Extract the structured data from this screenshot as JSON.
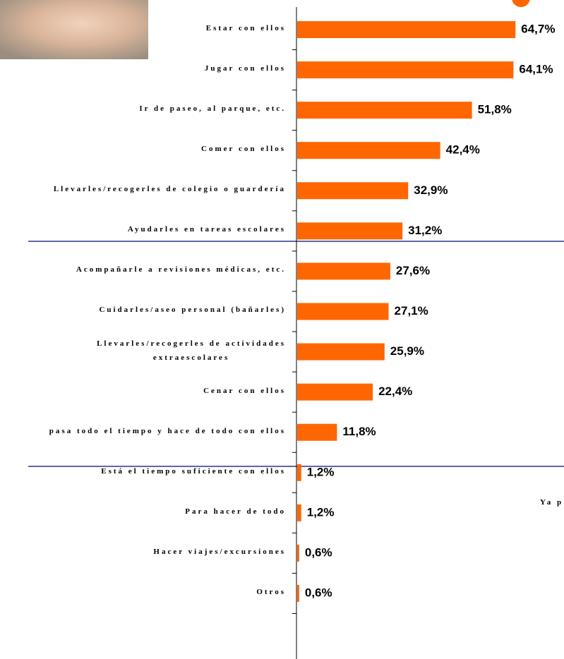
{
  "chart_data": {
    "type": "barh",
    "categories": [
      "Estar con ellos",
      "Jugar con ellos",
      "Ir de paseo, al parque, etc.",
      "Comer con ellos",
      "Llevarles/recogerles de colegio o guardería",
      "Ayudarles en tareas escolares",
      "Acompañarle a revisiones médicas, etc.",
      "Cuidarles/aseo personal (bañarles)",
      "Llevarles/recogerles de actividades\nextraescolares",
      "Cenar con ellos",
      "pasa todo el tiempo y hace de todo con ellos",
      "Está el tiempo suficiente con ellos",
      "Para hacer de todo",
      "Hacer viajes/excursiones",
      "Otros"
    ],
    "values": [
      64.7,
      64.1,
      51.8,
      42.4,
      32.9,
      31.2,
      27.6,
      27.1,
      25.9,
      22.4,
      11.8,
      1.2,
      1.2,
      0.6,
      0.6
    ],
    "value_labels": [
      "64,7%",
      "64,1%",
      "51,8%",
      "42,4%",
      "32,9%",
      "31,2%",
      "27,6%",
      "27,1%",
      "25,9%",
      "22,4%",
      "11,8%",
      "1,2%",
      "1,2%",
      "0,6%",
      "0,6%"
    ],
    "color": "#ff6600",
    "annotation": "Ya p"
  }
}
